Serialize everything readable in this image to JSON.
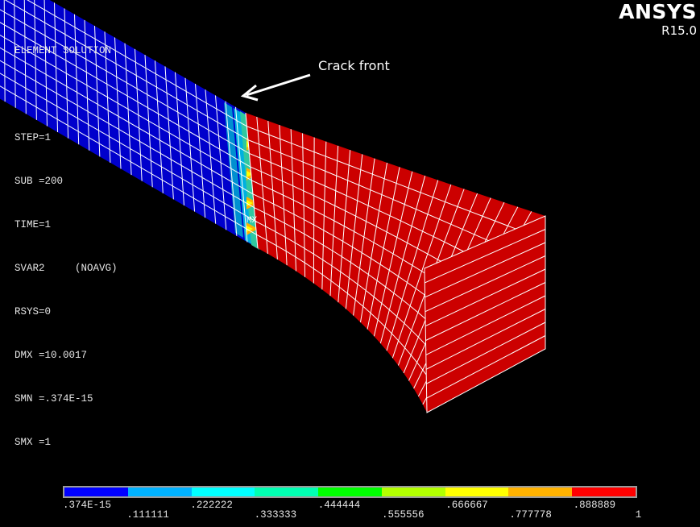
{
  "info": {
    "lines": [
      "ELEMENT SOLUTION",
      "",
      "STEP=1",
      "SUB =200",
      "TIME=1",
      "SVAR2     (NOAVG)",
      "RSYS=0",
      "DMX =10.0017",
      "SMN =.374E-15",
      "SMX =1"
    ]
  },
  "logo": {
    "name": "ANSYS",
    "version": "R15.0"
  },
  "annotation": {
    "text": "Crack front"
  },
  "max_marker": "MX",
  "legend": {
    "colors": [
      "#0000ff",
      "#00b2ff",
      "#00ffff",
      "#00ffb2",
      "#00ff00",
      "#b2ff00",
      "#ffff00",
      "#ffb200",
      "#ff0000"
    ],
    "labels": [
      ".374E-15",
      ".111111",
      ".222222",
      ".333333",
      ".444444",
      ".555556",
      ".666667",
      ".777778",
      ".888889",
      "1"
    ]
  },
  "colors": {
    "uncracked": "#0000cc",
    "cracked": "#cc0000",
    "mesh": "#ffffff"
  }
}
